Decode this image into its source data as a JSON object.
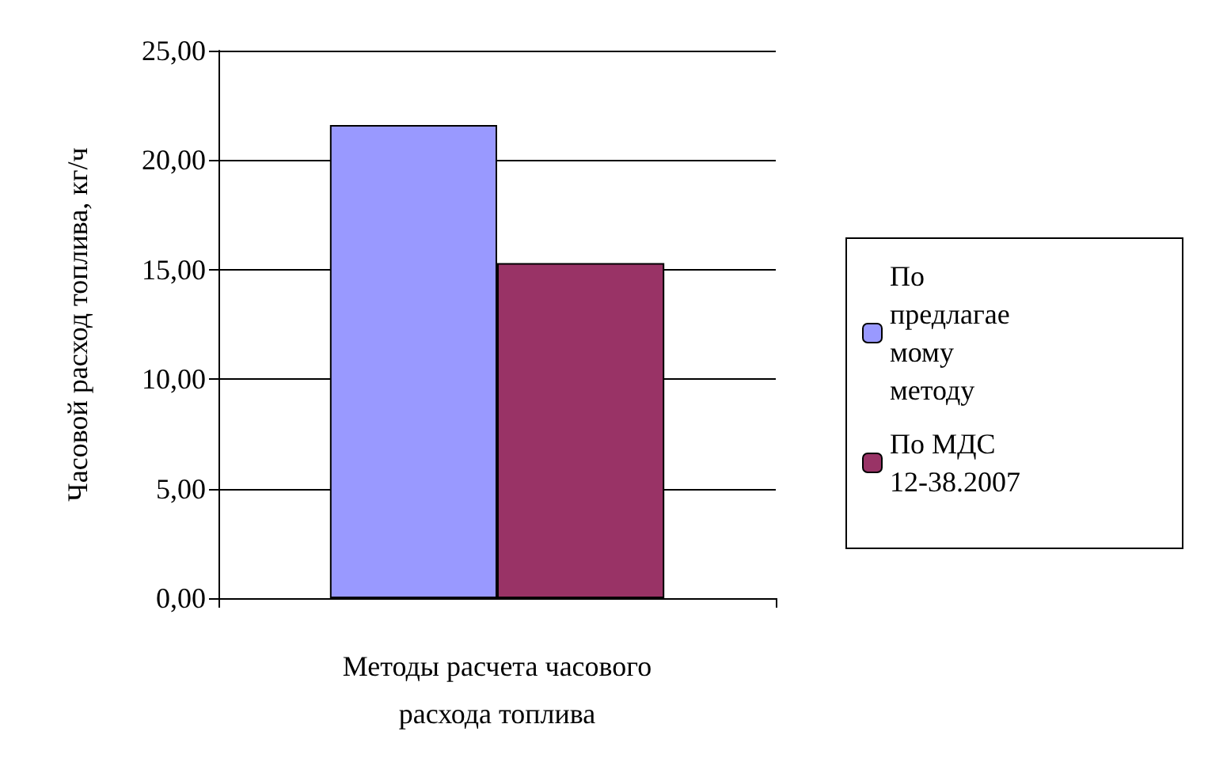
{
  "chart_data": {
    "type": "bar",
    "xlabel": "Методы расчета часового\nрасхода топлива",
    "ylabel": "Часовой расход топлива, кг/ч",
    "categories": [
      null
    ],
    "series": [
      {
        "name": "По предлагаемому методу",
        "color": "#9999ff",
        "values": [
          21.6
        ]
      },
      {
        "name": "По МДС 12-38.2007",
        "color": "#993366",
        "values": [
          15.3
        ]
      }
    ],
    "ylim": [
      0,
      25
    ],
    "yticks": [
      {
        "value": 0,
        "label": "0,00"
      },
      {
        "value": 5,
        "label": "5,00"
      },
      {
        "value": 10,
        "label": "10,00"
      },
      {
        "value": 15,
        "label": "15,00"
      },
      {
        "value": 20,
        "label": "20,00"
      },
      {
        "value": 25,
        "label": "25,00"
      }
    ],
    "grid": "y",
    "legend": "right"
  }
}
